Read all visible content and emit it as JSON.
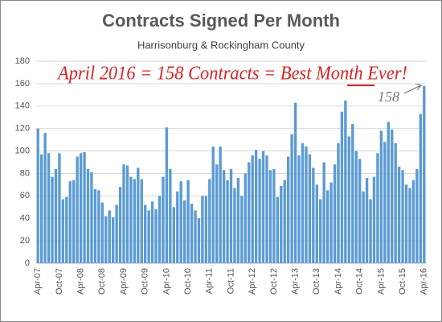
{
  "chart_data": {
    "type": "bar",
    "title": "Contracts Signed Per Month",
    "subtitle": "Harrisonburg & Rockingham County",
    "annotations": [
      "April 2016 = 158 Contracts = Best Month Ever!",
      "158"
    ],
    "categories": [
      "Apr-07",
      null,
      null,
      null,
      null,
      null,
      "Oct-07",
      null,
      null,
      null,
      null,
      null,
      "Apr-08",
      null,
      null,
      null,
      null,
      null,
      "Oct-08",
      null,
      null,
      null,
      null,
      null,
      "Apr-09",
      null,
      null,
      null,
      null,
      null,
      "Oct-09",
      null,
      null,
      null,
      null,
      null,
      "Apr-10",
      null,
      null,
      null,
      null,
      null,
      "Oct-10",
      null,
      null,
      null,
      null,
      null,
      "Apr-11",
      null,
      null,
      null,
      null,
      null,
      "Oct-11",
      null,
      null,
      null,
      null,
      null,
      "Apr-12",
      null,
      null,
      null,
      null,
      null,
      "Oct-12",
      null,
      null,
      null,
      null,
      null,
      "Apr-13",
      null,
      null,
      null,
      null,
      null,
      "Oct-13",
      null,
      null,
      null,
      null,
      null,
      "Apr-14",
      null,
      null,
      null,
      null,
      null,
      "Oct-14",
      null,
      null,
      null,
      null,
      null,
      "Apr-15",
      null,
      null,
      null,
      null,
      null,
      "Oct-15",
      null,
      null,
      null,
      null,
      null,
      "Apr-16"
    ],
    "values": [
      120,
      97,
      116,
      98,
      77,
      84,
      98,
      57,
      59,
      73,
      74,
      95,
      98,
      99,
      84,
      81,
      66,
      65,
      54,
      42,
      47,
      41,
      52,
      68,
      88,
      87,
      77,
      75,
      85,
      75,
      52,
      47,
      55,
      48,
      60,
      77,
      121,
      84,
      50,
      64,
      73,
      56,
      74,
      53,
      47,
      40,
      60,
      60,
      75,
      104,
      88,
      104,
      83,
      74,
      84,
      67,
      76,
      60,
      80,
      90,
      96,
      101,
      93,
      100,
      96,
      83,
      84,
      59,
      69,
      74,
      95,
      115,
      143,
      96,
      107,
      104,
      97,
      85,
      70,
      57,
      90,
      65,
      72,
      88,
      107,
      135,
      145,
      113,
      124,
      100,
      93,
      64,
      76,
      57,
      77,
      98,
      118,
      108,
      126,
      119,
      107,
      86,
      83,
      70,
      67,
      74,
      84,
      133,
      158
    ],
    "color": "#5b9bd5",
    "ylim": [
      0,
      180
    ],
    "yticks": [
      0,
      20,
      40,
      60,
      80,
      100,
      120,
      140,
      160,
      180
    ],
    "grid": true
  }
}
